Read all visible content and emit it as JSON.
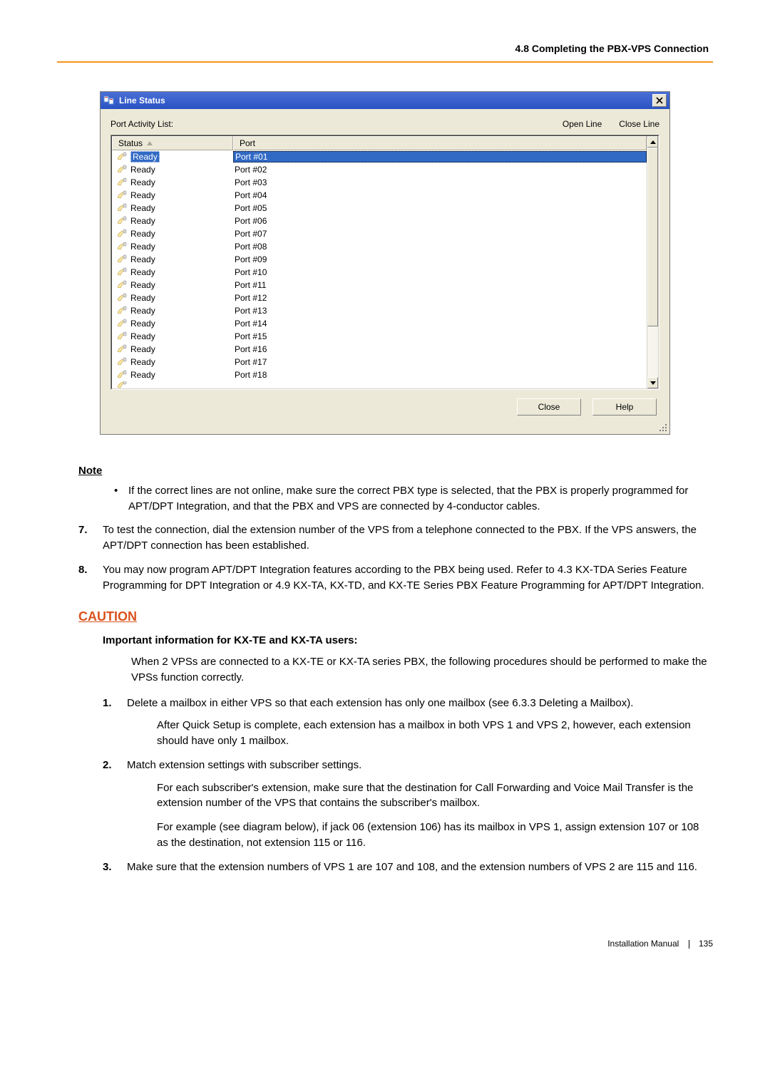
{
  "header": {
    "section_title": "4.8 Completing the PBX-VPS Connection"
  },
  "colors": {
    "orange_rule": "#f7941d",
    "titlebar_top": "#4a6fd6",
    "titlebar_bottom": "#2a53c2",
    "selection": "#316ac5",
    "win_bg": "#ece9d8",
    "caution": "#d9531e"
  },
  "window": {
    "title": "Line Status",
    "port_activity_label": "Port Activity List:",
    "open_line": "Open Line",
    "close_line": "Close Line",
    "col_status": "Status",
    "col_port": "Port",
    "close_btn": "Close",
    "help_btn": "Help",
    "rows": [
      {
        "status": "Ready",
        "port": "Port #01",
        "selected": true
      },
      {
        "status": "Ready",
        "port": "Port #02"
      },
      {
        "status": "Ready",
        "port": "Port #03"
      },
      {
        "status": "Ready",
        "port": "Port #04"
      },
      {
        "status": "Ready",
        "port": "Port #05"
      },
      {
        "status": "Ready",
        "port": "Port #06"
      },
      {
        "status": "Ready",
        "port": "Port #07"
      },
      {
        "status": "Ready",
        "port": "Port #08"
      },
      {
        "status": "Ready",
        "port": "Port #09"
      },
      {
        "status": "Ready",
        "port": "Port #10"
      },
      {
        "status": "Ready",
        "port": "Port #11"
      },
      {
        "status": "Ready",
        "port": "Port #12"
      },
      {
        "status": "Ready",
        "port": "Port #13"
      },
      {
        "status": "Ready",
        "port": "Port #14"
      },
      {
        "status": "Ready",
        "port": "Port #15"
      },
      {
        "status": "Ready",
        "port": "Port #16"
      },
      {
        "status": "Ready",
        "port": "Port #17"
      },
      {
        "status": "Ready",
        "port": "Port #18"
      }
    ],
    "scrollbar": {
      "thumb_top_pct": 0,
      "thumb_height_pct": 78
    }
  },
  "doc": {
    "note_label": "Note",
    "note_bullet": "If the correct lines are not online, make sure the correct PBX type is selected, that the PBX is properly programmed for APT/DPT Integration, and that the PBX and VPS are connected by 4-conductor cables.",
    "step7_num": "7.",
    "step7": "To test the connection, dial the extension number of the VPS from a telephone connected to the PBX. If the VPS answers, the APT/DPT connection has been established.",
    "step8_num": "8.",
    "step8": "You may now program APT/DPT Integration features according to the PBX being used. Refer to 4.3 KX-TDA Series Feature Programming for DPT Integration or 4.9 KX-TA, KX-TD, and KX-TE Series PBX Feature Programming for APT/DPT Integration.",
    "caution_label": "CAUTION",
    "important": "Important information for KX-TE and KX-TA users:",
    "caution_intro": "When 2 VPSs are connected to a KX-TE or KX-TA series PBX, the following procedures should be performed to make the VPSs function correctly.",
    "c1_num": "1.",
    "c1": "Delete a mailbox in either VPS so that each extension has only one mailbox (see 6.3.3 Deleting a Mailbox).",
    "c1_sub": "After Quick Setup is complete, each extension has a mailbox in both VPS 1 and VPS 2, however, each extension should have only 1 mailbox.",
    "c2_num": "2.",
    "c2": "Match extension settings with subscriber settings.",
    "c2_sub1": "For each subscriber's extension, make sure that the destination for Call Forwarding and Voice Mail Transfer is the extension number of the VPS that contains the subscriber's mailbox.",
    "c2_sub2": "For example (see diagram below), if jack 06 (extension 106) has its mailbox in VPS 1, assign extension 107 or 108 as the destination, not extension 115 or 116.",
    "c3_num": "3.",
    "c3": "Make sure that the extension numbers of VPS 1 are 107 and 108, and the extension numbers of VPS 2 are 115 and 116."
  },
  "footer": {
    "manual": "Installation Manual",
    "page": "135"
  }
}
